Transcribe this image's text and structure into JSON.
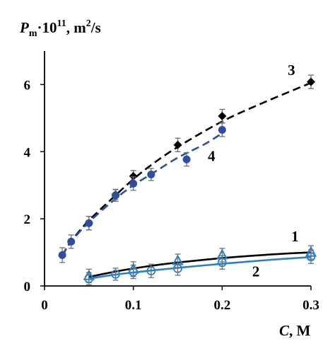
{
  "chart_data": {
    "type": "scatter",
    "ylabel": {
      "symbol": "P",
      "sub": "m",
      "mid": "·10",
      "sup": "11",
      "unit": ", m",
      "unit_sup": "2",
      "unit_end": "/s"
    },
    "xlabel": {
      "symbol": "C",
      "unit": ", M"
    },
    "xlim": [
      0,
      0.3
    ],
    "ylim": [
      0,
      7
    ],
    "xticks": [
      0,
      0.1,
      0.2,
      0.3
    ],
    "xtick_labels": [
      "0",
      "0.1",
      "0.2",
      "0.3"
    ],
    "yticks": [
      0,
      2,
      4,
      6
    ],
    "ytick_labels": [
      "0",
      "2",
      "4",
      "6"
    ],
    "grid": false,
    "series": [
      {
        "name": "3",
        "marker": "diamond",
        "marker_color": "#000000",
        "line_color": "#000000",
        "line_style": "dashed",
        "points": [
          {
            "x": 0.05,
            "y": 1.87,
            "err": 0.2
          },
          {
            "x": 0.08,
            "y": 2.72,
            "err": 0.15
          },
          {
            "x": 0.1,
            "y": 3.27,
            "err": 0.17
          },
          {
            "x": 0.15,
            "y": 4.2,
            "err": 0.2
          },
          {
            "x": 0.2,
            "y": 5.06,
            "err": 0.2
          },
          {
            "x": 0.3,
            "y": 6.08,
            "err": 0.2
          }
        ],
        "fit": [
          [
            0.02,
            0.9
          ],
          [
            0.03,
            1.33
          ],
          [
            0.05,
            1.95
          ],
          [
            0.08,
            2.7
          ],
          [
            0.1,
            3.18
          ],
          [
            0.12,
            3.6
          ],
          [
            0.15,
            4.14
          ],
          [
            0.2,
            4.9
          ],
          [
            0.25,
            5.5
          ],
          [
            0.3,
            6.05
          ]
        ]
      },
      {
        "name": "4",
        "marker": "circle",
        "marker_color": "#2f4e9b",
        "line_color": "#2f4e9b",
        "line_style": "dashed",
        "points": [
          {
            "x": 0.02,
            "y": 0.92,
            "err": 0.22
          },
          {
            "x": 0.03,
            "y": 1.32,
            "err": 0.2
          },
          {
            "x": 0.05,
            "y": 1.87,
            "err": 0.2
          },
          {
            "x": 0.08,
            "y": 2.7,
            "err": 0.18
          },
          {
            "x": 0.1,
            "y": 3.05,
            "err": 0.2
          },
          {
            "x": 0.12,
            "y": 3.32,
            "err": 0.18
          },
          {
            "x": 0.16,
            "y": 3.77,
            "err": 0.2
          },
          {
            "x": 0.2,
            "y": 4.65,
            "err": 0.2
          }
        ],
        "fit": [
          [
            0.02,
            0.92
          ],
          [
            0.03,
            1.32
          ],
          [
            0.05,
            1.9
          ],
          [
            0.08,
            2.6
          ],
          [
            0.1,
            3.0
          ],
          [
            0.12,
            3.33
          ],
          [
            0.15,
            3.82
          ],
          [
            0.18,
            4.22
          ],
          [
            0.2,
            4.55
          ]
        ]
      },
      {
        "name": "1",
        "marker": "triangle-open",
        "marker_color": "#2e7fc6",
        "line_color": "#000000",
        "line_style": "solid",
        "points": [
          {
            "x": 0.05,
            "y": 0.3,
            "err": 0.2
          },
          {
            "x": 0.1,
            "y": 0.5,
            "err": 0.22
          },
          {
            "x": 0.15,
            "y": 0.75,
            "err": 0.2
          },
          {
            "x": 0.2,
            "y": 0.92,
            "err": 0.2
          },
          {
            "x": 0.3,
            "y": 1.0,
            "err": 0.2
          }
        ],
        "fit": [
          [
            0.05,
            0.27
          ],
          [
            0.08,
            0.43
          ],
          [
            0.1,
            0.52
          ],
          [
            0.12,
            0.6
          ],
          [
            0.15,
            0.7
          ],
          [
            0.2,
            0.83
          ],
          [
            0.25,
            0.93
          ],
          [
            0.3,
            1.0
          ]
        ]
      },
      {
        "name": "2",
        "marker": "circle-cross-open",
        "marker_color": "#2e7fc6",
        "line_color": "#2e7fc6",
        "line_style": "solid",
        "points": [
          {
            "x": 0.05,
            "y": 0.22,
            "err": 0.18
          },
          {
            "x": 0.08,
            "y": 0.35,
            "err": 0.18
          },
          {
            "x": 0.1,
            "y": 0.42,
            "err": 0.2
          },
          {
            "x": 0.12,
            "y": 0.45,
            "err": 0.2
          },
          {
            "x": 0.15,
            "y": 0.52,
            "err": 0.2
          },
          {
            "x": 0.2,
            "y": 0.7,
            "err": 0.2
          },
          {
            "x": 0.3,
            "y": 0.87,
            "err": 0.2
          }
        ],
        "fit": [
          [
            0.05,
            0.22
          ],
          [
            0.08,
            0.34
          ],
          [
            0.1,
            0.4
          ],
          [
            0.12,
            0.46
          ],
          [
            0.15,
            0.54
          ],
          [
            0.2,
            0.66
          ],
          [
            0.25,
            0.77
          ],
          [
            0.3,
            0.86
          ]
        ]
      }
    ],
    "curve_labels": [
      {
        "text": "3",
        "x": 0.278,
        "y": 6.28
      },
      {
        "text": "4",
        "x": 0.188,
        "y": 3.72
      },
      {
        "text": "1",
        "x": 0.282,
        "y": 1.33
      },
      {
        "text": "2",
        "x": 0.238,
        "y": 0.28
      }
    ]
  }
}
